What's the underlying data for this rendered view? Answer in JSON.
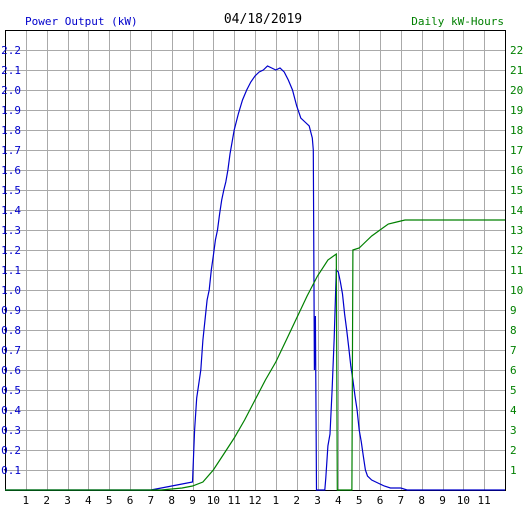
{
  "chart_data": {
    "type": "line",
    "title": "04/18/2019",
    "ylabel_left": "Power Output (kW)",
    "ylabel_right": "Daily kW-Hours",
    "xlabel": "",
    "x_tick_labels": [
      "1",
      "2",
      "3",
      "4",
      "5",
      "6",
      "7",
      "8",
      "9",
      "10",
      "11",
      "12",
      "1",
      "2",
      "3",
      "4",
      "5",
      "6",
      "7",
      "8",
      "9",
      "10",
      "11"
    ],
    "y_left_ticks": [
      "0.1",
      "0.2",
      "0.3",
      "0.4",
      "0.5",
      "0.6",
      "0.7",
      "0.8",
      "0.9",
      "1.0",
      "1.1",
      "1.2",
      "1.3",
      "1.4",
      "1.5",
      "1.6",
      "1.7",
      "1.8",
      "1.9",
      "2.0",
      "2.1",
      "2.2"
    ],
    "y_right_ticks": [
      "1",
      "2",
      "3",
      "4",
      "5",
      "6",
      "7",
      "8",
      "9",
      "10",
      "11",
      "12",
      "13",
      "14",
      "15",
      "16",
      "17",
      "18",
      "19",
      "20",
      "21",
      "22"
    ],
    "xlim": [
      0,
      24
    ],
    "ylim_left": [
      0,
      2.3
    ],
    "ylim_right": [
      0,
      23
    ],
    "grid": true,
    "series": [
      {
        "axis": "left",
        "color": "#0000cc",
        "points": [
          [
            0,
            0
          ],
          [
            7.0,
            0
          ],
          [
            7.5,
            0.01
          ],
          [
            8.0,
            0.02
          ],
          [
            8.5,
            0.03
          ],
          [
            9.0,
            0.04
          ],
          [
            9.1,
            0.3
          ],
          [
            9.2,
            0.46
          ],
          [
            9.4,
            0.6
          ],
          [
            9.5,
            0.75
          ],
          [
            9.6,
            0.85
          ],
          [
            9.7,
            0.95
          ],
          [
            9.8,
            1.0
          ],
          [
            9.9,
            1.1
          ],
          [
            10.0,
            1.17
          ],
          [
            10.1,
            1.25
          ],
          [
            10.2,
            1.3
          ],
          [
            10.3,
            1.38
          ],
          [
            10.4,
            1.45
          ],
          [
            10.5,
            1.5
          ],
          [
            10.6,
            1.54
          ],
          [
            10.7,
            1.6
          ],
          [
            10.8,
            1.68
          ],
          [
            10.9,
            1.74
          ],
          [
            11.0,
            1.8
          ],
          [
            11.2,
            1.88
          ],
          [
            11.4,
            1.95
          ],
          [
            11.6,
            2.0
          ],
          [
            11.8,
            2.04
          ],
          [
            12.0,
            2.07
          ],
          [
            12.2,
            2.09
          ],
          [
            12.4,
            2.1
          ],
          [
            12.6,
            2.12
          ],
          [
            12.8,
            2.11
          ],
          [
            13.0,
            2.1
          ],
          [
            13.2,
            2.11
          ],
          [
            13.4,
            2.09
          ],
          [
            13.6,
            2.05
          ],
          [
            13.8,
            2.0
          ],
          [
            14.0,
            1.92
          ],
          [
            14.2,
            1.86
          ],
          [
            14.4,
            1.84
          ],
          [
            14.6,
            1.82
          ],
          [
            14.75,
            1.76
          ],
          [
            14.8,
            1.7
          ],
          [
            14.85,
            0.6
          ],
          [
            14.9,
            0.87
          ],
          [
            14.95,
            0.0
          ],
          [
            15.35,
            0.0
          ],
          [
            15.4,
            0.06
          ],
          [
            15.5,
            0.22
          ],
          [
            15.6,
            0.28
          ],
          [
            15.7,
            0.5
          ],
          [
            15.8,
            0.76
          ],
          [
            15.9,
            1.1
          ],
          [
            16.0,
            1.09
          ],
          [
            16.1,
            1.04
          ],
          [
            16.2,
            0.98
          ],
          [
            16.3,
            0.88
          ],
          [
            16.4,
            0.8
          ],
          [
            16.5,
            0.71
          ],
          [
            16.6,
            0.62
          ],
          [
            16.7,
            0.55
          ],
          [
            16.8,
            0.47
          ],
          [
            16.9,
            0.4
          ],
          [
            17.0,
            0.3
          ],
          [
            17.1,
            0.24
          ],
          [
            17.2,
            0.17
          ],
          [
            17.3,
            0.1
          ],
          [
            17.4,
            0.07
          ],
          [
            17.6,
            0.05
          ],
          [
            17.8,
            0.04
          ],
          [
            18.0,
            0.03
          ],
          [
            18.2,
            0.02
          ],
          [
            18.5,
            0.01
          ],
          [
            19.0,
            0.01
          ],
          [
            19.3,
            0.0
          ],
          [
            24.0,
            0.0
          ]
        ]
      },
      {
        "axis": "right",
        "color": "#008000",
        "points": [
          [
            0,
            0
          ],
          [
            7.5,
            0
          ],
          [
            8.5,
            0.1
          ],
          [
            9.0,
            0.2
          ],
          [
            9.5,
            0.4
          ],
          [
            10.0,
            1.0
          ],
          [
            10.5,
            1.8
          ],
          [
            11.0,
            2.6
          ],
          [
            11.5,
            3.5
          ],
          [
            12.0,
            4.5
          ],
          [
            12.5,
            5.5
          ],
          [
            13.0,
            6.4
          ],
          [
            13.5,
            7.5
          ],
          [
            14.0,
            8.6
          ],
          [
            14.5,
            9.7
          ],
          [
            15.0,
            10.7
          ],
          [
            15.5,
            11.5
          ],
          [
            15.9,
            11.8
          ],
          [
            15.95,
            0.0
          ],
          [
            16.65,
            0.0
          ],
          [
            16.7,
            12.0
          ],
          [
            17.0,
            12.1
          ],
          [
            17.3,
            12.4
          ],
          [
            17.6,
            12.7
          ],
          [
            18.0,
            13.0
          ],
          [
            18.4,
            13.3
          ],
          [
            18.8,
            13.4
          ],
          [
            19.2,
            13.5
          ],
          [
            20.0,
            13.5
          ],
          [
            22.0,
            13.5
          ],
          [
            24.0,
            13.5
          ]
        ]
      }
    ]
  }
}
